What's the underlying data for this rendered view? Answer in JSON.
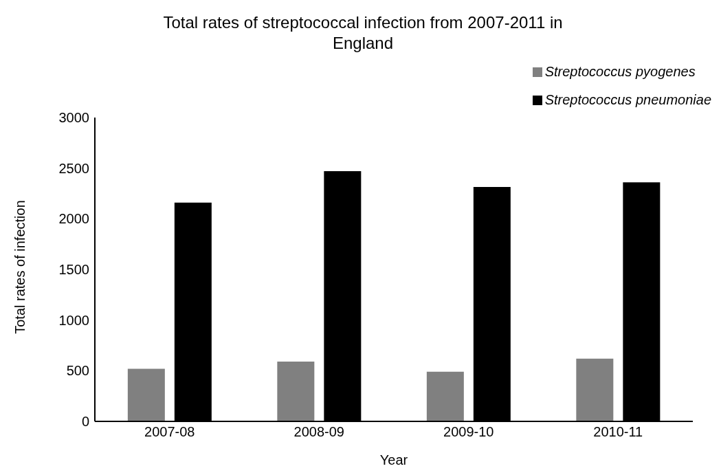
{
  "chart_data": {
    "type": "bar",
    "title": "Total rates of streptococcal infection from 2007-2011 in England",
    "xlabel": "Year",
    "ylabel": "Total rates of infection",
    "categories": [
      "2007-08",
      "2008-09",
      "2009-10",
      "2010-11"
    ],
    "series": [
      {
        "name": "Streptococcus pyogenes",
        "color": "#808080",
        "values": [
          520,
          590,
          490,
          620
        ]
      },
      {
        "name": "Streptococcus pneumoniae",
        "color": "#000000",
        "values": [
          2160,
          2470,
          2315,
          2360
        ]
      }
    ],
    "ylim": [
      0,
      3000
    ],
    "yticks": [
      0,
      500,
      1000,
      1500,
      2000,
      2500,
      3000
    ],
    "grid": false,
    "legend": "top right"
  }
}
